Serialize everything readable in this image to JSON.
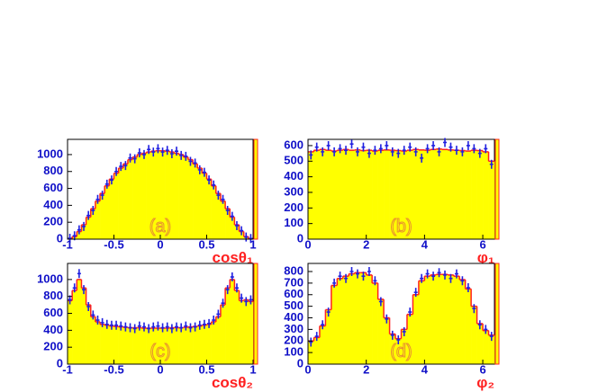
{
  "chart_data": [
    {
      "type": "histogram",
      "x_label": "cosθ₁",
      "annotation": "(a)",
      "bins": [
        -1,
        -0.95,
        -0.9,
        -0.85,
        -0.8,
        -0.75,
        -0.7,
        -0.65,
        -0.6,
        -0.55,
        -0.5,
        -0.45,
        -0.4,
        -0.35,
        -0.3,
        -0.25,
        -0.2,
        -0.15,
        -0.1,
        -0.05,
        0,
        0.05,
        0.1,
        0.15,
        0.2,
        0.25,
        0.3,
        0.35,
        0.4,
        0.45,
        0.5,
        0.55,
        0.6,
        0.65,
        0.7,
        0.75,
        0.8,
        0.85,
        0.9,
        0.95,
        1
      ],
      "values": [
        5,
        30,
        90,
        170,
        260,
        360,
        450,
        540,
        630,
        710,
        780,
        840,
        890,
        940,
        970,
        1000,
        1015,
        1030,
        1040,
        1045,
        1045,
        1040,
        1030,
        1015,
        1000,
        970,
        940,
        890,
        840,
        780,
        710,
        630,
        540,
        450,
        360,
        260,
        170,
        90,
        30,
        5
      ],
      "points": [
        10,
        40,
        110,
        150,
        280,
        340,
        470,
        520,
        650,
        700,
        800,
        860,
        870,
        960,
        950,
        1020,
        1000,
        1060,
        1030,
        1070,
        1030,
        1050,
        1010,
        1040,
        990,
        980,
        920,
        900,
        820,
        790,
        700,
        640,
        520,
        470,
        340,
        270,
        160,
        100,
        25,
        8
      ],
      "color": "#ffff00",
      "edge_color": "#ff2020",
      "point_color": "#2020e0",
      "xlim": [
        -1,
        1
      ],
      "ylim": [
        0,
        1180
      ],
      "xticks": [
        -1,
        -0.5,
        0,
        0.5,
        1
      ],
      "yticks": [
        0,
        200,
        400,
        600,
        800,
        1000
      ]
    },
    {
      "type": "histogram",
      "x_label": "φ₁",
      "annotation": "(b)",
      "bins": [
        0,
        0.2,
        0.4,
        0.6,
        0.8,
        1,
        1.2,
        1.4,
        1.6,
        1.8,
        2,
        2.2,
        2.4,
        2.6,
        2.8,
        3,
        3.2,
        3.4,
        3.6,
        3.8,
        4,
        4.2,
        4.4,
        4.6,
        4.8,
        5,
        5.2,
        5.4,
        5.6,
        5.8,
        6,
        6.2,
        6.4
      ],
      "values": [
        560,
        570,
        575,
        570,
        565,
        570,
        575,
        570,
        572,
        568,
        570,
        565,
        570,
        572,
        570,
        568,
        565,
        570,
        575,
        572,
        570,
        575,
        578,
        575,
        572,
        570,
        568,
        565,
        570,
        568,
        560,
        500
      ],
      "points": [
        540,
        590,
        560,
        600,
        560,
        580,
        570,
        610,
        560,
        590,
        550,
        570,
        580,
        600,
        560,
        550,
        570,
        590,
        560,
        520,
        580,
        600,
        560,
        620,
        590,
        570,
        560,
        600,
        580,
        550,
        580,
        480
      ],
      "color": "#ffff00",
      "edge_color": "#ff2020",
      "point_color": "#2020e0",
      "xlim": [
        0,
        6.4
      ],
      "ylim": [
        0,
        640
      ],
      "xticks": [
        0,
        2,
        4,
        6
      ],
      "yticks": [
        0,
        100,
        200,
        300,
        400,
        500,
        600
      ]
    },
    {
      "type": "histogram",
      "x_label": "cosθ₂",
      "annotation": "(c)",
      "bins": [
        -1,
        -0.95,
        -0.9,
        -0.85,
        -0.8,
        -0.75,
        -0.7,
        -0.65,
        -0.6,
        -0.55,
        -0.5,
        -0.45,
        -0.4,
        -0.35,
        -0.3,
        -0.25,
        -0.2,
        -0.15,
        -0.1,
        -0.05,
        0,
        0.05,
        0.1,
        0.15,
        0.2,
        0.25,
        0.3,
        0.35,
        0.4,
        0.45,
        0.5,
        0.55,
        0.6,
        0.65,
        0.7,
        0.75,
        0.8,
        0.85,
        0.9,
        0.95,
        1
      ],
      "values": [
        750,
        870,
        1000,
        900,
        700,
        560,
        500,
        470,
        460,
        450,
        445,
        440,
        435,
        430,
        430,
        430,
        425,
        425,
        425,
        425,
        425,
        425,
        430,
        430,
        430,
        435,
        440,
        445,
        450,
        460,
        470,
        500,
        560,
        700,
        900,
        1000,
        870,
        750,
        760,
        740
      ],
      "points": [
        760,
        900,
        1070,
        880,
        680,
        580,
        520,
        490,
        470,
        460,
        460,
        450,
        440,
        430,
        420,
        450,
        440,
        420,
        440,
        450,
        430,
        440,
        420,
        440,
        430,
        450,
        430,
        440,
        460,
        470,
        480,
        520,
        590,
        720,
        880,
        1030,
        900,
        780,
        740,
        760
      ],
      "color": "#ffff00",
      "edge_color": "#ff2020",
      "point_color": "#2020e0",
      "xlim": [
        -1,
        1
      ],
      "ylim": [
        0,
        1190
      ],
      "xticks": [
        -1,
        -0.5,
        0,
        0.5,
        1
      ],
      "yticks": [
        0,
        200,
        400,
        600,
        800,
        1000
      ]
    },
    {
      "type": "histogram",
      "x_label": "φ₂",
      "annotation": "(d)",
      "bins": [
        0,
        0.2,
        0.4,
        0.6,
        0.8,
        1,
        1.2,
        1.4,
        1.6,
        1.8,
        2,
        2.2,
        2.4,
        2.6,
        2.8,
        3,
        3.2,
        3.4,
        3.6,
        3.8,
        4,
        4.2,
        4.4,
        4.6,
        4.8,
        5,
        5.2,
        5.4,
        5.6,
        5.8,
        6,
        6.2,
        6.4
      ],
      "values": [
        200,
        230,
        330,
        470,
        680,
        740,
        760,
        780,
        790,
        790,
        770,
        700,
        560,
        400,
        260,
        220,
        300,
        430,
        600,
        720,
        760,
        770,
        775,
        775,
        770,
        760,
        730,
        650,
        500,
        350,
        290,
        250
      ],
      "points": [
        190,
        240,
        340,
        450,
        700,
        760,
        740,
        800,
        780,
        760,
        800,
        720,
        540,
        390,
        250,
        210,
        280,
        450,
        620,
        740,
        780,
        760,
        790,
        770,
        740,
        780,
        720,
        660,
        480,
        340,
        300,
        240
      ],
      "color": "#ffff00",
      "edge_color": "#ff2020",
      "point_color": "#2020e0",
      "xlim": [
        0,
        6.4
      ],
      "ylim": [
        0,
        870
      ],
      "xticks": [
        0,
        2,
        4,
        6
      ],
      "yticks": [
        0,
        100,
        200,
        300,
        400,
        500,
        600,
        700,
        800
      ]
    }
  ]
}
